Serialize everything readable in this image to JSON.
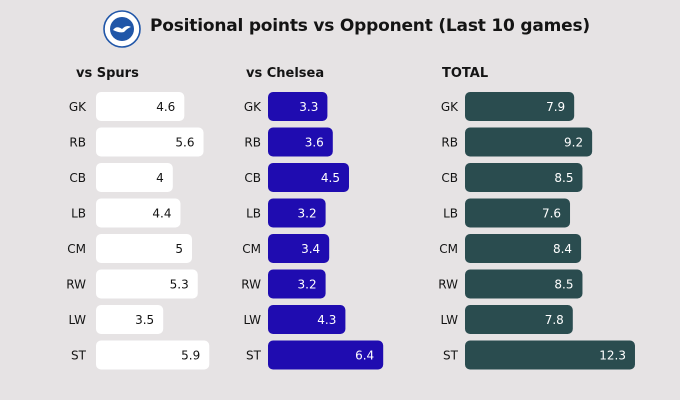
{
  "title": "Positional points vs Opponent (Last 10 games)",
  "colors": {
    "background": "#e6e3e4",
    "text": "#141414",
    "logo_blue": "#2056a8"
  },
  "chart_data": [
    {
      "type": "bar",
      "orientation": "horizontal",
      "title": "vs Spurs",
      "categories": [
        "GK",
        "RB",
        "CB",
        "LB",
        "CM",
        "RW",
        "LW",
        "ST"
      ],
      "values": [
        4.6,
        5.6,
        4,
        4.4,
        5,
        5.3,
        3.5,
        5.9
      ],
      "labels": [
        "4.6",
        "5.6",
        "4",
        "4.4",
        "5",
        "5.3",
        "3.5",
        "5.9"
      ],
      "bar_color": "#ffffff",
      "label_color": "#141414"
    },
    {
      "type": "bar",
      "orientation": "horizontal",
      "title": "vs Chelsea",
      "categories": [
        "GK",
        "RB",
        "CB",
        "LB",
        "CM",
        "RW",
        "LW",
        "ST"
      ],
      "values": [
        3.3,
        3.6,
        4.5,
        3.2,
        3.4,
        3.2,
        4.3,
        6.4
      ],
      "labels": [
        "3.3",
        "3.6",
        "4.5",
        "3.2",
        "3.4",
        "3.2",
        "4.3",
        "6.4"
      ],
      "bar_color": "#1f0cb0",
      "label_color": "#ffffff"
    },
    {
      "type": "bar",
      "orientation": "horizontal",
      "title": "TOTAL",
      "categories": [
        "GK",
        "RB",
        "CB",
        "LB",
        "CM",
        "RW",
        "LW",
        "ST"
      ],
      "values": [
        7.9,
        9.2,
        8.5,
        7.6,
        8.4,
        8.5,
        7.8,
        12.3
      ],
      "labels": [
        "7.9",
        "9.2",
        "8.5",
        "7.6",
        "8.4",
        "8.5",
        "7.8",
        "12.3"
      ],
      "bar_color": "#2a4c4f",
      "label_color": "#ffffff"
    }
  ]
}
